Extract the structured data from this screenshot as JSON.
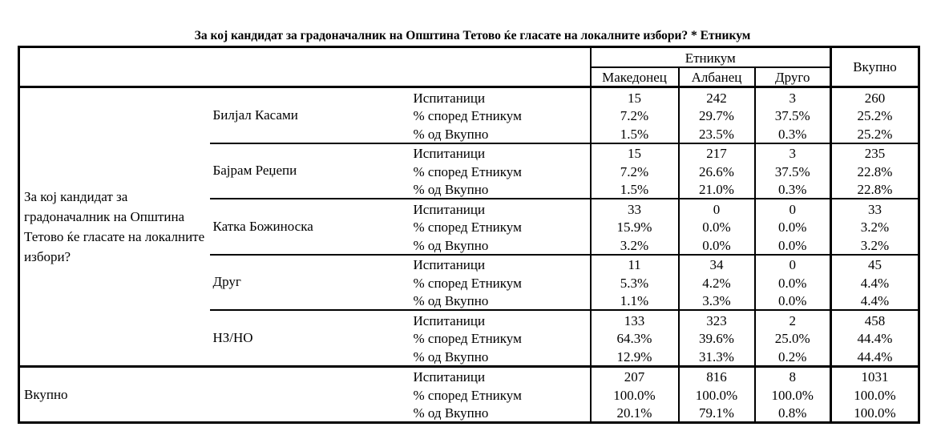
{
  "title": "За кој кандидат за градоначалник на Општина Тетово ќе гласате на локалните избори? * Етникум",
  "header": {
    "group_label": "Етникум",
    "columns": [
      "Македонец",
      "Албанец",
      "Друго"
    ],
    "total_label": "Вкупно"
  },
  "sections": [
    {
      "label": "За кој кандидат за градоначалник на Општина Тетово ќе гласате на локалните избори?",
      "groups": [
        {
          "name": "Билјал Касами",
          "rows": [
            {
              "label": "Испитаници",
              "values": [
                "15",
                "242",
                "3",
                "260"
              ]
            },
            {
              "label": "% според Етникум",
              "values": [
                "7.2%",
                "29.7%",
                "37.5%",
                "25.2%"
              ]
            },
            {
              "label": "% од Вкупно",
              "values": [
                "1.5%",
                "23.5%",
                "0.3%",
                "25.2%"
              ]
            }
          ]
        },
        {
          "name": "Бајрам Реџепи",
          "rows": [
            {
              "label": "Испитаници",
              "values": [
                "15",
                "217",
                "3",
                "235"
              ]
            },
            {
              "label": "% според Етникум",
              "values": [
                "7.2%",
                "26.6%",
                "37.5%",
                "22.8%"
              ]
            },
            {
              "label": "% од Вкупно",
              "values": [
                "1.5%",
                "21.0%",
                "0.3%",
                "22.8%"
              ]
            }
          ]
        },
        {
          "name": "Катка Божиноска",
          "rows": [
            {
              "label": "Испитаници",
              "values": [
                "33",
                "0",
                "0",
                "33"
              ]
            },
            {
              "label": "% според Етникум",
              "values": [
                "15.9%",
                "0.0%",
                "0.0%",
                "3.2%"
              ]
            },
            {
              "label": "% од Вкупно",
              "values": [
                "3.2%",
                "0.0%",
                "0.0%",
                "3.2%"
              ]
            }
          ]
        },
        {
          "name": "Друг",
          "rows": [
            {
              "label": "Испитаници",
              "values": [
                "11",
                "34",
                "0",
                "45"
              ]
            },
            {
              "label": "% според Етникум",
              "values": [
                "5.3%",
                "4.2%",
                "0.0%",
                "4.4%"
              ]
            },
            {
              "label": "% од Вкупно",
              "values": [
                "1.1%",
                "3.3%",
                "0.0%",
                "4.4%"
              ]
            }
          ]
        },
        {
          "name": "НЗ/НО",
          "rows": [
            {
              "label": "Испитаници",
              "values": [
                "133",
                "323",
                "2",
                "458"
              ]
            },
            {
              "label": "% според Етникум",
              "values": [
                "64.3%",
                "39.6%",
                "25.0%",
                "44.4%"
              ]
            },
            {
              "label": "% од Вкупно",
              "values": [
                "12.9%",
                "31.3%",
                "0.2%",
                "44.4%"
              ]
            }
          ]
        }
      ]
    },
    {
      "label": "Вкупно",
      "groups": [
        {
          "rows": [
            {
              "label": "Испитаници",
              "values": [
                "207",
                "816",
                "8",
                "1031"
              ]
            },
            {
              "label": "% според Етникум",
              "values": [
                "100.0%",
                "100.0%",
                "100.0%",
                "100.0%"
              ]
            },
            {
              "label": "% од Вкупно",
              "values": [
                "20.1%",
                "79.1%",
                "0.8%",
                "100.0%"
              ]
            }
          ]
        }
      ]
    }
  ]
}
